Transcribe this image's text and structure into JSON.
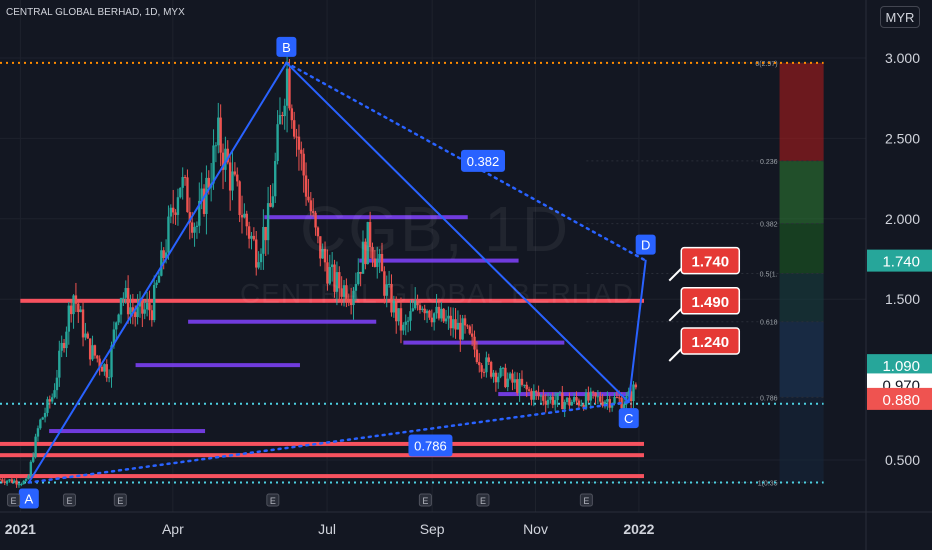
{
  "header": {
    "ticker_line": "CENTRAL GLOBAL BERHAD, 1D, MYX",
    "currency": "MYR"
  },
  "watermark": {
    "symbol": "CGB, 1D",
    "name": "CENTRAL GLOBAL BERHAD"
  },
  "colors": {
    "background": "#131722",
    "up": "#26a69a",
    "down": "#ef5350",
    "pattern": "#2962ff",
    "resistance": "#f7525f",
    "volume_profile": "#7b3ff2",
    "fib_red": "#b71c1c",
    "fib_green": "#2e7d32",
    "fib_blue": "#1e3a5f",
    "orange_level": "#ff8c00",
    "cyan_level": "#4dd0e1"
  },
  "chart_data": {
    "type": "candlestick",
    "interval": "1D",
    "x_range": [
      "2020-12-20",
      "2022-05-15"
    ],
    "y_range": [
      0.3,
      3.2
    ],
    "y_ticks": [
      {
        "value": 3.0,
        "label": "3.000"
      },
      {
        "value": 2.5,
        "label": "2.500"
      },
      {
        "value": 2.0,
        "label": "2.000"
      },
      {
        "value": 1.5,
        "label": "1.500"
      },
      {
        "value": 0.5,
        "label": "0.500"
      }
    ],
    "x_ticks": [
      {
        "date": "2021-01-01",
        "label": "2021",
        "bold": true
      },
      {
        "date": "2021-04-01",
        "label": "Apr",
        "bold": false
      },
      {
        "date": "2021-07-01",
        "label": "Jul",
        "bold": false
      },
      {
        "date": "2021-09-01",
        "label": "Sep",
        "bold": false
      },
      {
        "date": "2021-11-01",
        "label": "Nov",
        "bold": false
      },
      {
        "date": "2022-01-01",
        "label": "2022",
        "bold": true
      }
    ],
    "earnings_marks": [
      {
        "date": "2020-12-28",
        "label": "E"
      },
      {
        "date": "2021-01-30",
        "label": "E"
      },
      {
        "date": "2021-03-01",
        "label": "E"
      },
      {
        "date": "2021-05-30",
        "label": "E"
      },
      {
        "date": "2021-08-28",
        "label": "E"
      },
      {
        "date": "2021-10-01",
        "label": "E"
      },
      {
        "date": "2021-12-01",
        "label": "E"
      }
    ],
    "price_path": [
      {
        "date": "2020-12-20",
        "price": 0.38
      },
      {
        "date": "2021-01-05",
        "price": 0.36
      },
      {
        "date": "2021-01-12",
        "price": 0.72
      },
      {
        "date": "2021-01-20",
        "price": 0.9
      },
      {
        "date": "2021-02-01",
        "price": 1.55
      },
      {
        "date": "2021-02-10",
        "price": 1.2
      },
      {
        "date": "2021-02-22",
        "price": 1.05
      },
      {
        "date": "2021-03-01",
        "price": 1.55
      },
      {
        "date": "2021-03-10",
        "price": 1.4
      },
      {
        "date": "2021-03-20",
        "price": 1.45
      },
      {
        "date": "2021-04-05",
        "price": 2.25
      },
      {
        "date": "2021-04-15",
        "price": 1.95
      },
      {
        "date": "2021-04-28",
        "price": 2.5
      },
      {
        "date": "2021-05-10",
        "price": 2.1
      },
      {
        "date": "2021-05-20",
        "price": 1.8
      },
      {
        "date": "2021-05-28",
        "price": 2.0
      },
      {
        "date": "2021-06-07",
        "price": 2.95
      },
      {
        "date": "2021-06-15",
        "price": 2.4
      },
      {
        "date": "2021-06-25",
        "price": 1.85
      },
      {
        "date": "2021-07-05",
        "price": 1.6
      },
      {
        "date": "2021-07-15",
        "price": 1.55
      },
      {
        "date": "2021-07-26",
        "price": 1.9
      },
      {
        "date": "2021-08-05",
        "price": 1.55
      },
      {
        "date": "2021-08-15",
        "price": 1.3
      },
      {
        "date": "2021-08-25",
        "price": 1.5
      },
      {
        "date": "2021-09-05",
        "price": 1.38
      },
      {
        "date": "2021-09-20",
        "price": 1.3
      },
      {
        "date": "2021-10-01",
        "price": 1.1
      },
      {
        "date": "2021-10-15",
        "price": 1.0
      },
      {
        "date": "2021-11-01",
        "price": 0.9
      },
      {
        "date": "2021-11-20",
        "price": 0.86
      },
      {
        "date": "2021-12-10",
        "price": 0.88
      },
      {
        "date": "2021-12-25",
        "price": 0.87
      },
      {
        "date": "2021-12-31",
        "price": 0.97
      }
    ],
    "harmonic_points": [
      {
        "label": "A",
        "date": "2021-01-06",
        "price": 0.36
      },
      {
        "label": "B",
        "date": "2021-06-07",
        "price": 2.97
      },
      {
        "label": "C",
        "date": "2021-12-26",
        "price": 0.86
      },
      {
        "label": "D",
        "date": "2022-01-05",
        "price": 1.74
      }
    ],
    "ratios": [
      {
        "label": "0.382",
        "from": "B",
        "to": "D",
        "date": "2021-10-01",
        "price": 2.36
      },
      {
        "label": "0.786",
        "from": "A",
        "to": "C",
        "date": "2021-08-31",
        "price": 0.59
      }
    ],
    "resistance_levels": [
      {
        "price": 1.49,
        "from": "2021-01-01",
        "to": "2022-01-04"
      },
      {
        "price": 0.6,
        "from": "2020-12-20",
        "to": "2022-01-04"
      },
      {
        "price": 0.53,
        "from": "2020-12-20",
        "to": "2022-01-04"
      },
      {
        "price": 0.4,
        "from": "2020-12-20",
        "to": "2022-01-04"
      }
    ],
    "volume_profile_bars": [
      {
        "price": 2.01,
        "from": "2021-05-25",
        "to": "2021-09-22"
      },
      {
        "price": 1.74,
        "from": "2021-07-20",
        "to": "2021-10-22"
      },
      {
        "price": 1.36,
        "from": "2021-04-10",
        "to": "2021-07-30"
      },
      {
        "price": 1.23,
        "from": "2021-08-15",
        "to": "2021-11-18"
      },
      {
        "price": 1.09,
        "from": "2021-03-10",
        "to": "2021-06-15"
      },
      {
        "price": 0.91,
        "from": "2021-10-10",
        "to": "2021-12-28"
      },
      {
        "price": 0.68,
        "from": "2021-01-18",
        "to": "2021-04-20"
      }
    ],
    "orange_level": {
      "price": 2.97
    },
    "cyan_levels": [
      {
        "price": 0.36
      },
      {
        "price": 0.85
      }
    ],
    "fib_labels": [
      {
        "price": 2.97,
        "text": "0(2.97)"
      },
      {
        "price": 2.36,
        "text": "0.236"
      },
      {
        "price": 1.97,
        "text": "0.382"
      },
      {
        "price": 1.66,
        "text": "0.5(1."
      },
      {
        "price": 1.36,
        "text": "0.618"
      },
      {
        "price": 0.89,
        "text": "0.786"
      },
      {
        "price": 0.36,
        "text": "1(0.35"
      }
    ],
    "target_labels": [
      {
        "price": 1.74,
        "text": "1.740"
      },
      {
        "price": 1.49,
        "text": "1.490"
      },
      {
        "price": 1.24,
        "text": "1.240"
      }
    ],
    "axis_badges": [
      {
        "price": 1.74,
        "text": "1.740",
        "bg": "#26a69a",
        "fg": "#ffffff"
      },
      {
        "price": 1.09,
        "text": "1.090",
        "bg": "#26a69a",
        "fg": "#ffffff"
      },
      {
        "price": 0.97,
        "text": "0.970",
        "bg": "#ffffff",
        "fg": "#131722"
      },
      {
        "price": 0.88,
        "text": "0.880",
        "bg": "#ef5350",
        "fg": "#ffffff"
      }
    ]
  }
}
